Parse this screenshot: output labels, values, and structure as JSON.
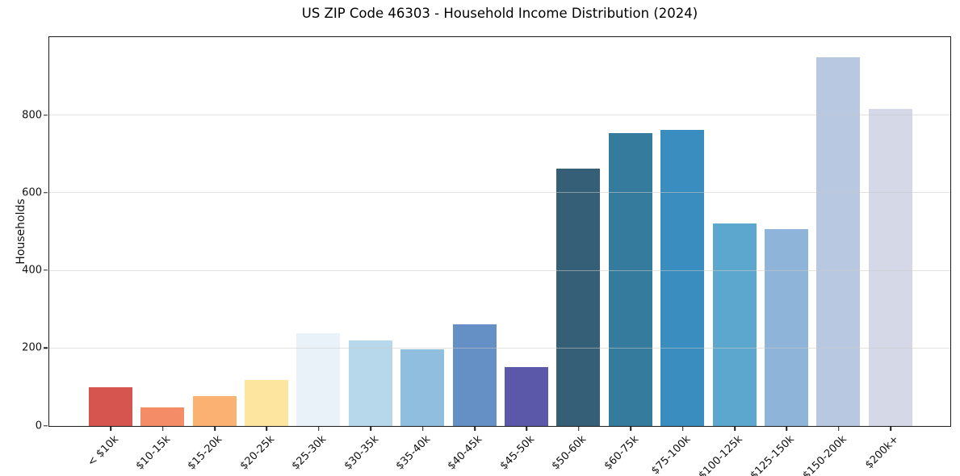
{
  "figure": {
    "background": "#ffffff",
    "plot_border_color": "#1c1c1c",
    "gridline_color": "#cacaca"
  },
  "chart_data": {
    "type": "bar",
    "title": "US ZIP Code 46303 - Household Income Distribution (2024)",
    "xlabel": "",
    "ylabel": "Households",
    "categories": [
      "< $10k",
      "$10-15k",
      "$15-20k",
      "$20-25k",
      "$25-30k",
      "$30-35k",
      "$35-40k",
      "$40-45k",
      "$45-50k",
      "$50-60k",
      "$60-75k",
      "$75-100k",
      "$100-125k",
      "$125-150k",
      "$150-200k",
      "$200k+"
    ],
    "values": [
      100,
      47,
      76,
      119,
      240,
      221,
      198,
      262,
      151,
      664,
      754,
      763,
      521,
      507,
      950,
      817
    ],
    "bar_colors": [
      "#d6564f",
      "#f58c68",
      "#fbb171",
      "#fde49f",
      "#e9f2f8",
      "#b6d8ea",
      "#90bede",
      "#6590c6",
      "#5b58a9",
      "#355f76",
      "#357b9e",
      "#398dbf",
      "#5ca7cd",
      "#8eb5d9",
      "#b8c8e0",
      "#d4d8e7"
    ],
    "ylim": [
      0,
      1000
    ],
    "yticks": [
      0,
      200,
      400,
      600,
      800
    ],
    "grid": "horizontal",
    "legend": "none",
    "x_tick_rotation_deg": 45
  }
}
